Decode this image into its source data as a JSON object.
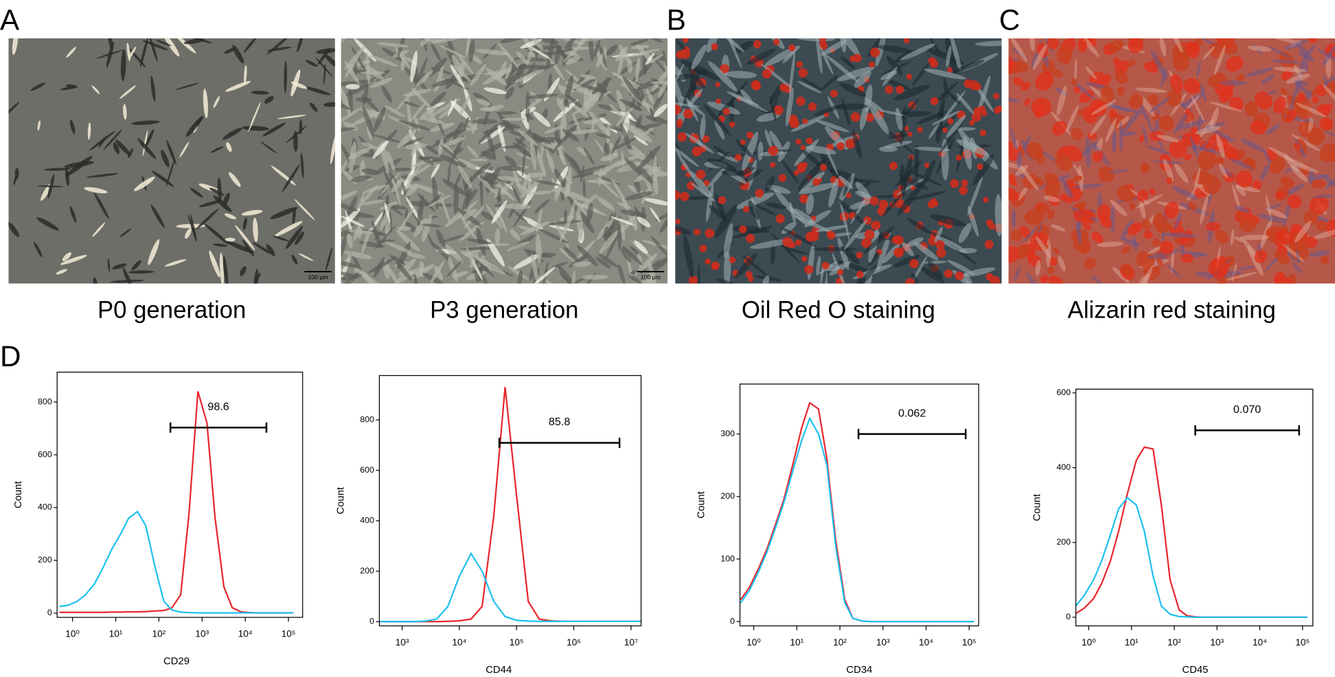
{
  "panel_letters": [
    "A",
    "B",
    "C",
    "D"
  ],
  "images": [
    {
      "caption": "P0 generation",
      "scale_bar": "100 µm"
    },
    {
      "caption": "P3 generation",
      "scale_bar": "100 µm"
    },
    {
      "caption": "Oil Red O staining"
    },
    {
      "caption": "Alizarin red staining"
    }
  ],
  "chart_data": [
    {
      "type": "line",
      "x_log": true,
      "x_label": "CD29",
      "y_label": "Count",
      "x": [
        0.5,
        0.8,
        1.3,
        2,
        3.2,
        5,
        8,
        13,
        20,
        32,
        50,
        80,
        130,
        200,
        320,
        500,
        800,
        1300,
        2000,
        3200,
        5000,
        8000,
        13000,
        20000,
        32000,
        50000,
        80000,
        130000
      ],
      "series": [
        {
          "color": "#e8262c",
          "values": [
            3,
            3,
            3,
            3,
            3,
            3,
            4,
            4,
            5,
            5,
            6,
            8,
            10,
            20,
            70,
            380,
            840,
            720,
            360,
            100,
            20,
            5,
            2,
            1,
            1,
            1,
            1,
            1
          ]
        },
        {
          "color": "#1ec0f0",
          "values": [
            25,
            30,
            45,
            70,
            110,
            170,
            240,
            300,
            360,
            385,
            330,
            180,
            45,
            12,
            4,
            2,
            1,
            1,
            1,
            1,
            1,
            1,
            1,
            1,
            1,
            1,
            1,
            1
          ]
        }
      ],
      "xlim": [
        0.44,
        213000
      ],
      "ylim": [
        -16,
        913
      ],
      "xticks": [
        {
          "value": 1,
          "label": "10⁰"
        },
        {
          "value": 10,
          "label": "10¹"
        },
        {
          "value": 100,
          "label": "10²"
        },
        {
          "value": 1000,
          "label": "10³"
        },
        {
          "value": 10000,
          "label": "10⁴"
        },
        {
          "value": 100000,
          "label": "10⁵"
        }
      ],
      "yticks": [
        0,
        200,
        400,
        600,
        800
      ],
      "gate": {
        "x": [
          185,
          30900
        ],
        "y": 703,
        "value": 98.6
      }
    },
    {
      "type": "line",
      "x_log": true,
      "x_label": "CD44",
      "y_label": "Count",
      "x": [
        400,
        630,
        1000,
        1600,
        2500,
        4000,
        6300,
        10000,
        16000,
        25000,
        40000,
        63000,
        100000,
        160000,
        250000,
        400000,
        630000,
        1000000,
        1600000,
        2500000,
        4000000,
        6300000,
        10000000,
        15000000
      ],
      "series": [
        {
          "color": "#e8262c",
          "values": [
            0,
            0,
            0,
            0,
            0,
            0,
            1,
            3,
            10,
            60,
            420,
            930,
            500,
            80,
            10,
            3,
            1,
            1,
            1,
            1,
            1,
            1,
            1,
            1
          ]
        },
        {
          "color": "#1ec0f0",
          "values": [
            0,
            0,
            0,
            0,
            2,
            10,
            60,
            180,
            270,
            200,
            80,
            20,
            5,
            2,
            1,
            1,
            1,
            1,
            1,
            1,
            1,
            1,
            1,
            1
          ]
        }
      ],
      "xlim": [
        400,
        15000000
      ],
      "ylim": [
        -17,
        976
      ],
      "xticks": [
        {
          "value": 1000,
          "label": "10³"
        },
        {
          "value": 10000,
          "label": "10⁴"
        },
        {
          "value": 100000,
          "label": "10⁵"
        },
        {
          "value": 1000000,
          "label": "10⁶"
        },
        {
          "value": 10000000,
          "label": "10⁷"
        }
      ],
      "yticks": [
        0,
        200,
        400,
        600,
        800
      ],
      "gate": {
        "x": [
          50000,
          6300000
        ],
        "y": 709,
        "value": 85.8
      }
    },
    {
      "type": "line",
      "x_log": true,
      "x_label": "CD34",
      "y_label": "Count",
      "x": [
        0.5,
        0.8,
        1.3,
        2,
        3.2,
        5,
        8,
        13,
        20,
        32,
        50,
        80,
        130,
        200,
        320,
        500,
        800,
        1300,
        2000,
        3200,
        5000,
        8000,
        13000,
        20000,
        32000,
        50000,
        80000,
        130000
      ],
      "series": [
        {
          "color": "#e8262c",
          "values": [
            35,
            55,
            85,
            115,
            155,
            195,
            250,
            310,
            350,
            340,
            260,
            130,
            35,
            5,
            1,
            0,
            0,
            0,
            0,
            0,
            0,
            0,
            0,
            0,
            0,
            0,
            0,
            0
          ]
        },
        {
          "color": "#1ec0f0",
          "values": [
            30,
            50,
            80,
            110,
            150,
            190,
            240,
            290,
            325,
            300,
            250,
            120,
            30,
            5,
            1,
            0,
            0,
            0,
            0,
            0,
            0,
            0,
            0,
            0,
            0,
            0,
            0,
            0
          ]
        }
      ],
      "xlim": [
        0.48,
        166000
      ],
      "ylim": [
        -7,
        380
      ],
      "xticks": [
        {
          "value": 1,
          "label": "10⁰"
        },
        {
          "value": 10,
          "label": "10¹"
        },
        {
          "value": 100,
          "label": "10²"
        },
        {
          "value": 1000,
          "label": "10³"
        },
        {
          "value": 10000,
          "label": "10⁴"
        },
        {
          "value": 100000,
          "label": "10⁵"
        }
      ],
      "yticks": [
        0,
        100,
        200,
        300
      ],
      "gate": {
        "x": [
          270,
          83000
        ],
        "y": 300,
        "value": 0.062
      }
    },
    {
      "type": "line",
      "x_log": true,
      "x_label": "CD45",
      "y_label": "Count",
      "x": [
        0.5,
        0.8,
        1.3,
        2,
        3.2,
        5,
        8,
        13,
        20,
        32,
        50,
        80,
        130,
        200,
        320,
        500,
        800,
        1300,
        2000,
        3200,
        5000,
        8000,
        13000,
        20000,
        32000,
        50000,
        80000,
        130000
      ],
      "series": [
        {
          "color": "#e8262c",
          "values": [
            10,
            25,
            50,
            90,
            150,
            230,
            330,
            420,
            455,
            450,
            300,
            100,
            20,
            4,
            1,
            0,
            0,
            0,
            0,
            0,
            0,
            0,
            0,
            0,
            0,
            0,
            0,
            0
          ]
        },
        {
          "color": "#1ec0f0",
          "values": [
            30,
            60,
            100,
            150,
            220,
            290,
            320,
            300,
            230,
            110,
            30,
            8,
            2,
            1,
            0,
            0,
            0,
            0,
            0,
            0,
            0,
            0,
            0,
            0,
            0,
            0,
            0,
            0
          ]
        }
      ],
      "xlim": [
        0.5,
        174000
      ],
      "ylim": [
        -23,
        610
      ],
      "xticks": [
        {
          "value": 1,
          "label": "10⁰"
        },
        {
          "value": 10,
          "label": "10¹"
        },
        {
          "value": 100,
          "label": "10²"
        },
        {
          "value": 1000,
          "label": "10³"
        },
        {
          "value": 10000,
          "label": "10⁴"
        },
        {
          "value": 100000,
          "label": "10⁵"
        }
      ],
      "yticks": [
        0,
        200,
        400,
        600
      ],
      "gate": {
        "x": [
          310,
          83000
        ],
        "y": 500,
        "value": 0.07,
        "value_label": "0.070"
      }
    }
  ]
}
